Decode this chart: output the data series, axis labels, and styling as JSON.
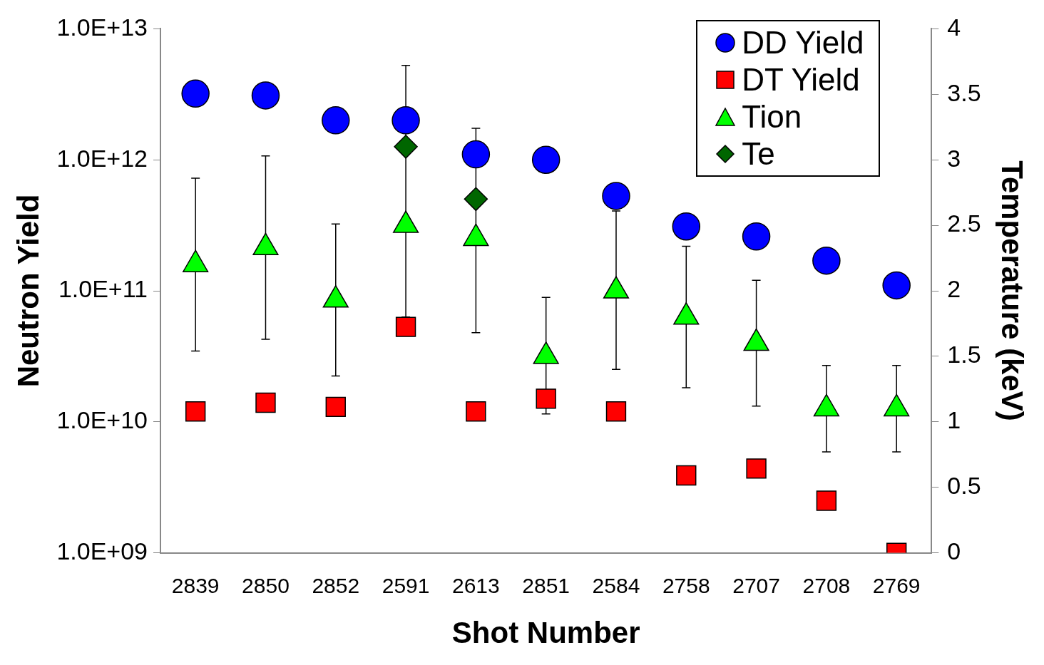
{
  "chart_data": {
    "type": "scatter",
    "categories": [
      "2839",
      "2850",
      "2852",
      "2591",
      "2613",
      "2851",
      "2584",
      "2758",
      "2707",
      "2708",
      "2769"
    ],
    "xlabel": "Shot Number",
    "ylabel": "Neutron Yield",
    "y2label": "Temperature (keV)",
    "log": "y",
    "grid": false,
    "legend": "top right",
    "ylim": [
      1000000000.0,
      10000000000000.0
    ],
    "yticks": [
      {
        "value": 1000000000.0,
        "label": "1.0E+09"
      },
      {
        "value": 10000000000.0,
        "label": "1.0E+10"
      },
      {
        "value": 100000000000.0,
        "label": "1.0E+11"
      },
      {
        "value": 1000000000000.0,
        "label": "1.0E+12"
      },
      {
        "value": 10000000000000.0,
        "label": "1.0E+13"
      }
    ],
    "y2lim": [
      0,
      4
    ],
    "y2ticks": [
      0,
      0.5,
      1,
      1.5,
      2,
      2.5,
      3,
      3.5,
      4
    ],
    "series": [
      {
        "name": "DD Yield",
        "color": "#0000ff",
        "marker": "circle",
        "values": [
          3200000000000.0,
          3100000000000.0,
          2000000000000.0,
          2000000000000.0,
          1100000000000.0,
          1000000000000.0,
          530000000000.0,
          310000000000.0,
          260000000000.0,
          170000000000.0,
          110000000000.0
        ]
      },
      {
        "name": "DT Yield",
        "color": "#ff0000",
        "marker": "square",
        "values": [
          12000000000.0,
          14000000000.0,
          13000000000.0,
          53000000000.0,
          12000000000.0,
          15000000000.0,
          12000000000.0,
          3900000000.0,
          4400000000.0,
          2500000000.0,
          1000000000.0
        ]
      },
      {
        "name": "Tion",
        "color": "#00ff00",
        "marker": "triangle",
        "axis": "y2",
        "values": [
          2.2,
          2.33,
          1.93,
          2.5,
          2.4,
          1.5,
          2.0,
          1.8,
          1.6,
          1.1,
          1.1
        ],
        "errors": [
          [
            1.54,
            2.86
          ],
          [
            1.63,
            3.03
          ],
          [
            1.35,
            2.51
          ],
          [
            1.8,
            3.72
          ],
          [
            1.68,
            3.24
          ],
          [
            1.06,
            1.95
          ],
          [
            1.4,
            2.61
          ],
          [
            1.26,
            2.34
          ],
          [
            1.12,
            2.08
          ],
          [
            0.77,
            1.43
          ],
          [
            0.77,
            1.43
          ]
        ]
      },
      {
        "name": "Te",
        "color": "#006600",
        "marker": "diamond",
        "axis": "y2",
        "values": [
          null,
          null,
          null,
          3.1,
          2.7,
          null,
          null,
          null,
          null,
          null,
          null
        ]
      }
    ]
  }
}
